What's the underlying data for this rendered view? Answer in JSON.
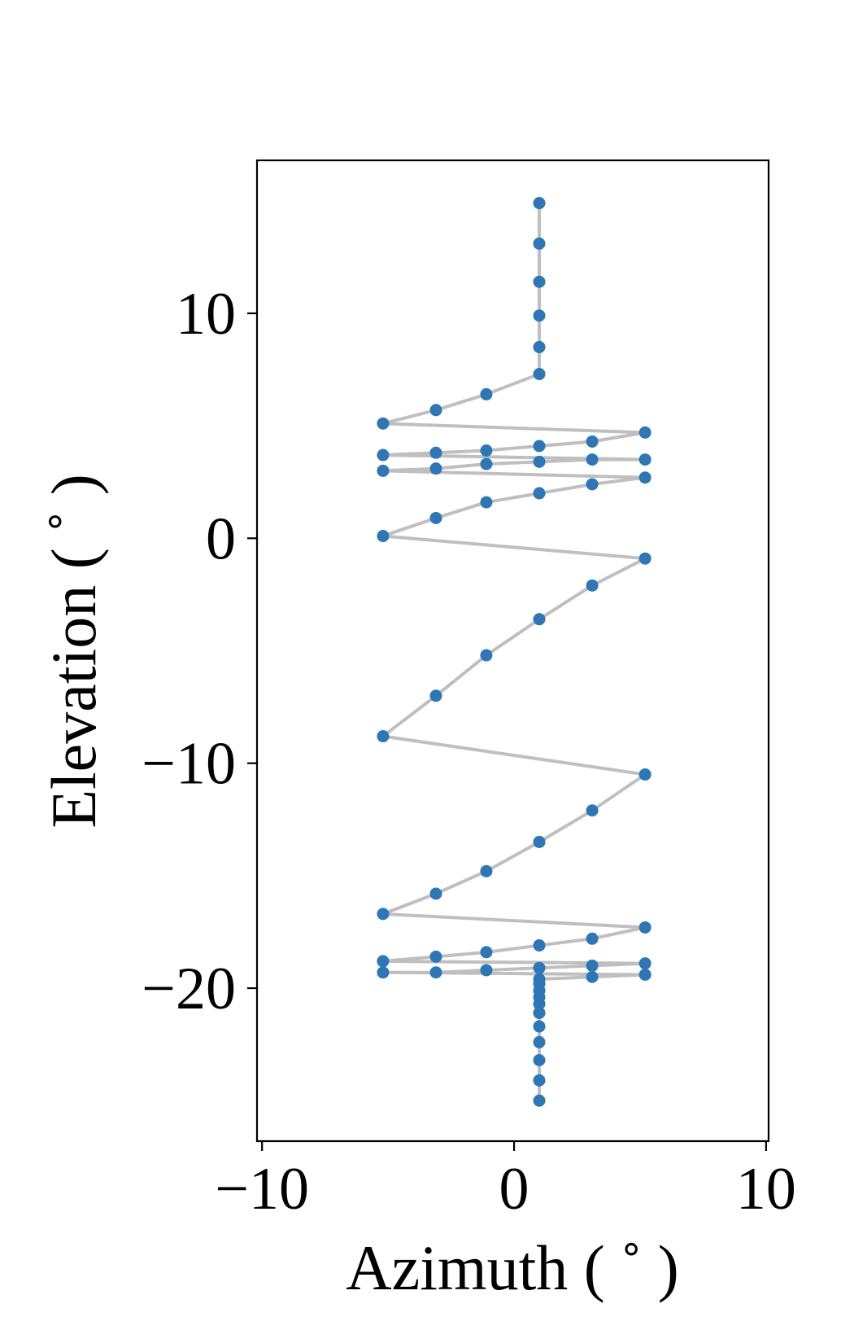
{
  "chart_data": {
    "type": "line",
    "xlabel": "Azimuth ( ˚ )",
    "ylabel": "Elevation ( ˚ )",
    "xlim": [
      -10.2,
      10.1
    ],
    "ylim": [
      -26.8,
      16.8
    ],
    "xticks": [
      -10,
      0,
      10
    ],
    "yticks": [
      -20,
      -10,
      0,
      10
    ],
    "xtick_labels": [
      "−10",
      "0",
      "10"
    ],
    "ytick_labels": [
      "−20",
      "−10",
      "0",
      "10"
    ],
    "grid": false,
    "legend": "none",
    "line_color": "#bfbfbf",
    "marker_color": "#2e77b4",
    "series": [
      {
        "points": [
          [
            1.0,
            14.9
          ],
          [
            1.0,
            13.1
          ],
          [
            1.0,
            11.4
          ],
          [
            1.0,
            9.9
          ],
          [
            1.0,
            8.5
          ],
          [
            1.0,
            7.3
          ],
          [
            -1.1,
            6.4
          ],
          [
            -3.1,
            5.7
          ],
          [
            -5.2,
            5.1
          ],
          [
            5.2,
            4.7
          ],
          [
            3.1,
            4.3
          ],
          [
            1.0,
            4.1
          ],
          [
            -1.1,
            3.9
          ],
          [
            -3.1,
            3.8
          ],
          [
            -5.2,
            3.7
          ],
          [
            5.2,
            3.5
          ],
          [
            3.1,
            3.5
          ],
          [
            1.0,
            3.4
          ],
          [
            -1.1,
            3.3
          ],
          [
            -3.1,
            3.1
          ],
          [
            -5.2,
            3.0
          ],
          [
            5.2,
            2.7
          ],
          [
            3.1,
            2.4
          ],
          [
            1.0,
            2.0
          ],
          [
            -1.1,
            1.6
          ],
          [
            -3.1,
            0.9
          ],
          [
            -5.2,
            0.1
          ],
          [
            5.2,
            -0.9
          ],
          [
            3.1,
            -2.1
          ],
          [
            1.0,
            -3.6
          ],
          [
            -1.1,
            -5.2
          ],
          [
            -3.1,
            -7.0
          ],
          [
            -5.2,
            -8.8
          ],
          [
            5.2,
            -10.5
          ],
          [
            3.1,
            -12.1
          ],
          [
            1.0,
            -13.5
          ],
          [
            -1.1,
            -14.8
          ],
          [
            -3.1,
            -15.8
          ],
          [
            -5.2,
            -16.7
          ],
          [
            5.2,
            -17.3
          ],
          [
            3.1,
            -17.8
          ],
          [
            1.0,
            -18.1
          ],
          [
            -1.1,
            -18.4
          ],
          [
            -3.1,
            -18.6
          ],
          [
            -5.2,
            -18.8
          ],
          [
            5.2,
            -18.9
          ],
          [
            3.1,
            -19.0
          ],
          [
            1.0,
            -19.1
          ],
          [
            -1.1,
            -19.2
          ],
          [
            -3.1,
            -19.3
          ],
          [
            -5.2,
            -19.3
          ],
          [
            5.2,
            -19.4
          ],
          [
            3.1,
            -19.5
          ],
          [
            1.0,
            -19.6
          ],
          [
            1.0,
            -19.8
          ],
          [
            1.0,
            -20.1
          ],
          [
            1.0,
            -20.4
          ],
          [
            1.0,
            -20.7
          ],
          [
            1.0,
            -21.1
          ],
          [
            1.0,
            -21.7
          ],
          [
            1.0,
            -22.4
          ],
          [
            1.0,
            -23.2
          ],
          [
            1.0,
            -24.1
          ],
          [
            1.0,
            -25.0
          ]
        ]
      }
    ]
  }
}
